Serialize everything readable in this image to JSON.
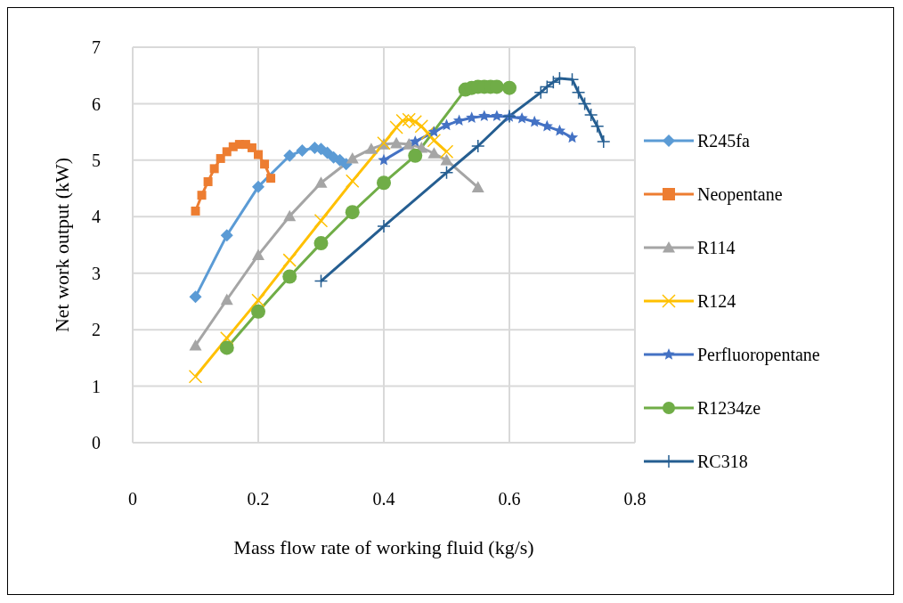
{
  "chart_data": {
    "type": "line",
    "xlabel": "Mass flow rate of working fluid (kg/s)",
    "ylabel": "Net work output (kW)",
    "xlim": [
      0,
      0.8
    ],
    "xticks": [
      0,
      0.2,
      0.4,
      0.6,
      0.8
    ],
    "ylim": [
      0,
      7
    ],
    "yticks": [
      0,
      1,
      2,
      3,
      4,
      5,
      6,
      7
    ],
    "grid": true,
    "legend": "right",
    "series": [
      {
        "name": "R245fa",
        "color": "#5b9bd5",
        "marker": "diamond",
        "x": [
          0.1,
          0.15,
          0.2,
          0.25,
          0.27,
          0.29,
          0.3,
          0.31,
          0.32,
          0.33,
          0.34
        ],
        "values": [
          2.58,
          3.67,
          4.53,
          5.08,
          5.17,
          5.22,
          5.2,
          5.13,
          5.05,
          5.0,
          4.93
        ]
      },
      {
        "name": "Neopentane",
        "color": "#ed7d31",
        "marker": "square",
        "x": [
          0.1,
          0.11,
          0.12,
          0.13,
          0.14,
          0.15,
          0.16,
          0.17,
          0.18,
          0.19,
          0.2,
          0.21,
          0.22
        ],
        "values": [
          4.1,
          4.38,
          4.62,
          4.85,
          5.03,
          5.15,
          5.24,
          5.28,
          5.28,
          5.22,
          5.1,
          4.93,
          4.68
        ]
      },
      {
        "name": "R114",
        "color": "#a5a5a5",
        "marker": "triangle",
        "x": [
          0.1,
          0.15,
          0.2,
          0.25,
          0.3,
          0.35,
          0.38,
          0.4,
          0.42,
          0.44,
          0.46,
          0.48,
          0.5,
          0.55
        ],
        "values": [
          1.72,
          2.53,
          3.32,
          4.01,
          4.6,
          5.03,
          5.2,
          5.28,
          5.3,
          5.28,
          5.22,
          5.12,
          5.0,
          4.52
        ]
      },
      {
        "name": "R124",
        "color": "#ffc000",
        "marker": "cross",
        "x": [
          0.1,
          0.15,
          0.2,
          0.25,
          0.3,
          0.35,
          0.4,
          0.42,
          0.43,
          0.44,
          0.45,
          0.46,
          0.47,
          0.48,
          0.5
        ],
        "values": [
          1.17,
          1.85,
          2.52,
          3.23,
          3.93,
          4.63,
          5.3,
          5.58,
          5.7,
          5.72,
          5.68,
          5.6,
          5.48,
          5.35,
          5.15
        ]
      },
      {
        "name": "Perfluoropentane",
        "color": "#4472c4",
        "marker": "star",
        "x": [
          0.4,
          0.45,
          0.48,
          0.5,
          0.52,
          0.54,
          0.56,
          0.58,
          0.6,
          0.62,
          0.64,
          0.66,
          0.68,
          0.7
        ],
        "values": [
          5.0,
          5.33,
          5.5,
          5.62,
          5.7,
          5.75,
          5.78,
          5.78,
          5.77,
          5.74,
          5.68,
          5.6,
          5.52,
          5.4
        ]
      },
      {
        "name": "R1234ze",
        "color": "#70ad47",
        "marker": "circle",
        "x": [
          0.15,
          0.2,
          0.25,
          0.3,
          0.35,
          0.4,
          0.45,
          0.53,
          0.54,
          0.55,
          0.56,
          0.57,
          0.58,
          0.6
        ],
        "values": [
          1.68,
          2.32,
          2.94,
          3.53,
          4.08,
          4.6,
          5.08,
          6.25,
          6.28,
          6.3,
          6.3,
          6.3,
          6.3,
          6.28
        ]
      },
      {
        "name": "RC318",
        "color": "#255e91",
        "marker": "plus",
        "x": [
          0.3,
          0.4,
          0.5,
          0.55,
          0.6,
          0.65,
          0.66,
          0.67,
          0.68,
          0.7,
          0.71,
          0.72,
          0.73,
          0.74,
          0.75
        ],
        "values": [
          2.86,
          3.83,
          4.78,
          5.25,
          5.78,
          6.2,
          6.3,
          6.38,
          6.45,
          6.43,
          6.2,
          6.0,
          5.8,
          5.6,
          5.33
        ]
      }
    ]
  }
}
